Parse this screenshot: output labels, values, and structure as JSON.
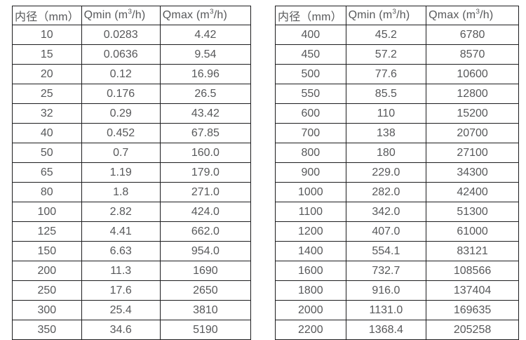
{
  "page": {
    "background": "#ffffff",
    "text_color": "#57585a",
    "border_color": "#1d1d1f"
  },
  "tables": [
    {
      "name": "flow-table-small-diameters",
      "headers": [
        {
          "pre": "内径（mm）",
          "sup": "",
          "post": ""
        },
        {
          "pre": "Qmin (m",
          "sup": "3",
          "post": "/h)"
        },
        {
          "pre": "Qmax (m",
          "sup": "3",
          "post": "/h)"
        }
      ],
      "rows": [
        [
          "10",
          "0.0283",
          "4.42"
        ],
        [
          "15",
          "0.0636",
          "9.54"
        ],
        [
          "20",
          "0.12",
          "16.96"
        ],
        [
          "25",
          "0.176",
          "26.5"
        ],
        [
          "32",
          "0.29",
          "43.42"
        ],
        [
          "40",
          "0.452",
          "67.85"
        ],
        [
          "50",
          "0.7",
          "160.0"
        ],
        [
          "65",
          "1.19",
          "179.0"
        ],
        [
          "80",
          "1.8",
          "271.0"
        ],
        [
          "100",
          "2.82",
          "424.0"
        ],
        [
          "125",
          "4.41",
          "662.0"
        ],
        [
          "150",
          "6.63",
          "954.0"
        ],
        [
          "200",
          "11.3",
          "1690"
        ],
        [
          "250",
          "17.6",
          "2650"
        ],
        [
          "300",
          "25.4",
          "3810"
        ],
        [
          "350",
          "34.6",
          "5190"
        ]
      ]
    },
    {
      "name": "flow-table-large-diameters",
      "headers": [
        {
          "pre": "内径（mm）",
          "sup": "",
          "post": ""
        },
        {
          "pre": "Qmin (m",
          "sup": "3",
          "post": "/h)"
        },
        {
          "pre": "Qmax (m",
          "sup": "3",
          "post": "/h)"
        }
      ],
      "rows": [
        [
          "400",
          "45.2",
          "6780"
        ],
        [
          "450",
          "57.2",
          "8570"
        ],
        [
          "500",
          "77.6",
          "10600"
        ],
        [
          "550",
          "85.5",
          "12800"
        ],
        [
          "600",
          "110",
          "15200"
        ],
        [
          "700",
          "138",
          "20700"
        ],
        [
          "800",
          "180",
          "27100"
        ],
        [
          "900",
          "229.0",
          "34300"
        ],
        [
          "1000",
          "282.0",
          "42400"
        ],
        [
          "1100",
          "342.0",
          "51300"
        ],
        [
          "1200",
          "407.0",
          "61000"
        ],
        [
          "1400",
          "554.1",
          "83121"
        ],
        [
          "1600",
          "732.7",
          "108566"
        ],
        [
          "1800",
          "916.0",
          "137404"
        ],
        [
          "2000",
          "1131.0",
          "169635"
        ],
        [
          "2200",
          "1368.4",
          "205258"
        ]
      ]
    }
  ]
}
